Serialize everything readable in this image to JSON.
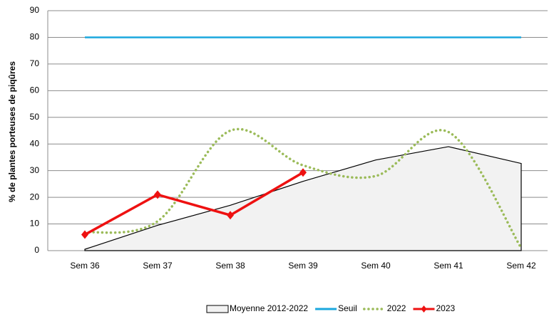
{
  "chart_data": {
    "type": "line",
    "y_label": "% de plantes porteuses de piqûres",
    "categories": [
      "Sem 36",
      "Sem 37",
      "Sem 38",
      "Sem 39",
      "Sem 40",
      "Sem 41",
      "Sem 42"
    ],
    "series": [
      {
        "name": "Moyenne 2012-2022",
        "color": "#000000",
        "style": "area",
        "values": [
          0.5,
          9.5,
          17,
          26,
          34,
          39,
          32.7
        ]
      },
      {
        "name": "Seuil",
        "color": "#1aa7de",
        "style": "solid",
        "values": [
          80,
          80,
          80,
          80,
          80,
          80,
          80
        ]
      },
      {
        "name": "2022",
        "color": "#9bbb59",
        "style": "dotted",
        "values": [
          6.8,
          11,
          45,
          32,
          28,
          44.5,
          1
        ]
      },
      {
        "name": "2023",
        "color": "#ee1111",
        "style": "markers",
        "values": [
          6,
          21,
          13.3,
          29.3,
          null,
          null,
          null
        ]
      }
    ],
    "ylim": [
      0,
      90
    ],
    "yticks": [
      0,
      10,
      20,
      30,
      40,
      50,
      60,
      70,
      80,
      90
    ],
    "grid": true
  }
}
